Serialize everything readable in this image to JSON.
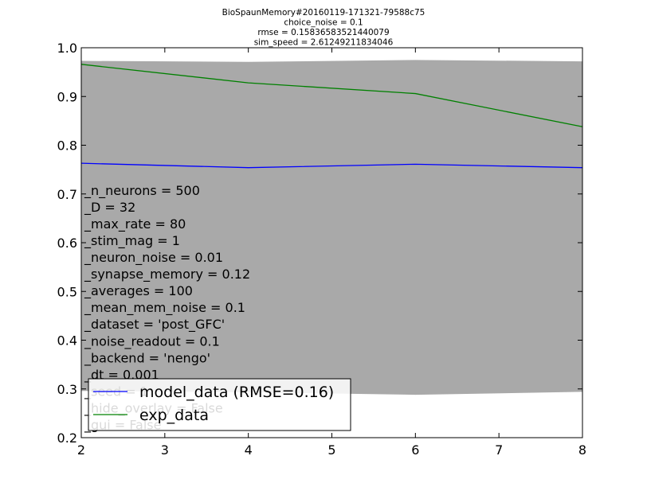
{
  "chart_data": {
    "type": "line",
    "title_lines": [
      "BioSpaunMemory#20160119-171321-79588c75",
      "choice_noise = 0.1",
      "rmse = 0.15836583521440079",
      "sim_speed = 2.61249211834046"
    ],
    "xlabel": "",
    "ylabel": "",
    "xlim": [
      2,
      8
    ],
    "ylim": [
      0.2,
      1.0
    ],
    "xticks": [
      2,
      3,
      4,
      5,
      6,
      7,
      8
    ],
    "yticks": [
      0.2,
      0.3,
      0.4,
      0.5,
      0.6,
      0.7,
      0.8,
      0.9,
      1.0
    ],
    "xtick_labels": [
      "2",
      "3",
      "4",
      "5",
      "6",
      "7",
      "8"
    ],
    "ytick_labels": [
      "0.2",
      "0.3",
      "0.4",
      "0.5",
      "0.6",
      "0.7",
      "0.8",
      "0.9",
      "1.0"
    ],
    "grid": false,
    "legend_position": "lower-left",
    "band": {
      "x": [
        2,
        4,
        6,
        8
      ],
      "upper": [
        0.973,
        0.971,
        0.975,
        0.972
      ],
      "lower": [
        0.296,
        0.293,
        0.288,
        0.294
      ],
      "color": "#a9a9a9"
    },
    "series": [
      {
        "name": "model_data (RMSE=0.16)",
        "x": [
          2,
          4,
          6,
          8
        ],
        "values": [
          0.763,
          0.754,
          0.761,
          0.754
        ],
        "color": "#0000ff"
      },
      {
        "name": "exp_data",
        "x": [
          2,
          4,
          6,
          8
        ],
        "values": [
          0.966,
          0.928,
          0.906,
          0.838
        ],
        "color": "#008000"
      }
    ],
    "annotation_lines": [
      "_n_neurons = 500",
      "_D = 32",
      "_max_rate = 80",
      "_stim_mag = 1",
      "_neuron_noise = 0.01",
      "_synapse_memory = 0.12",
      "_averages = 100",
      "_mean_mem_noise = 0.1",
      "_dataset = 'post_GFC'",
      "_noise_readout = 0.1",
      "_backend = 'nengo'",
      "_dt = 0.001",
      "_seed = 1",
      "_hide_overlay = False",
      "_gui = False"
    ]
  }
}
